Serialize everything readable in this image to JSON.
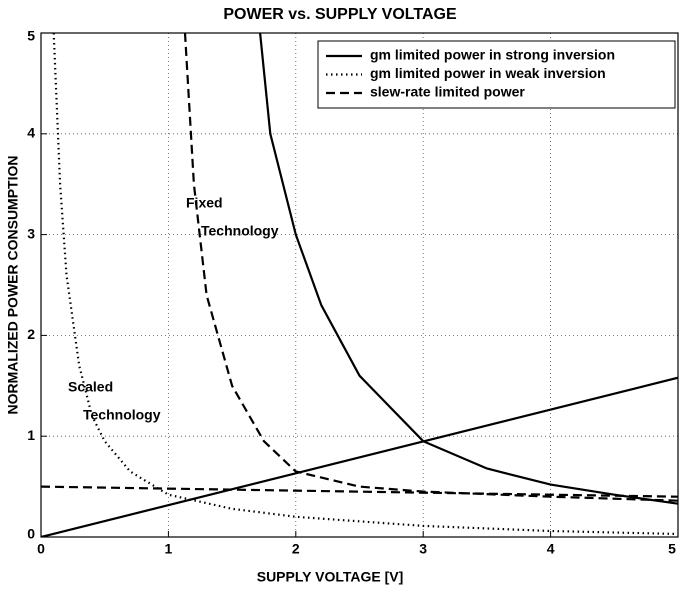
{
  "chart_data": {
    "type": "line",
    "title": "POWER vs. SUPPLY VOLTAGE",
    "xlabel": "SUPPLY VOLTAGE [V]",
    "ylabel": "NORMALIZED POWER CONSUMPTION",
    "xlim": [
      0,
      5
    ],
    "ylim": [
      0,
      5
    ],
    "xticks": [
      0,
      1,
      2,
      3,
      4,
      5
    ],
    "yticks": [
      0,
      1,
      2,
      3,
      4,
      5
    ],
    "grid": true,
    "legend": "upper right",
    "series": [
      {
        "name": "gm limited power in strong inversion",
        "color": "#000000",
        "style": "solid",
        "x": [
          1.72,
          1.8,
          2,
          2.2,
          2.5,
          3,
          3.5,
          4,
          4.5,
          5,
          null,
          0,
          5
        ],
        "values": [
          5,
          4,
          3,
          2.3,
          1.6,
          0.95,
          0.68,
          0.52,
          0.42,
          0.33,
          null,
          0,
          1.58
        ]
      },
      {
        "name": "gm limited power in weak inversion",
        "color": "#000000",
        "style": "dotted",
        "x": [
          0.1,
          0.15,
          0.2,
          0.3,
          0.4,
          0.5,
          0.7,
          1,
          1.5,
          2,
          3,
          4,
          5
        ],
        "values": [
          5,
          3.5,
          2.6,
          1.7,
          1.2,
          0.95,
          0.65,
          0.42,
          0.28,
          0.2,
          0.11,
          0.06,
          0.03
        ]
      },
      {
        "name": "slew-rate limited power",
        "color": "#000000",
        "style": "dashed",
        "x": [
          1.13,
          1.2,
          1.3,
          1.5,
          1.75,
          2,
          2.5,
          3,
          4,
          5,
          null,
          0,
          5
        ],
        "values": [
          5,
          3.5,
          2.4,
          1.5,
          0.95,
          0.65,
          0.5,
          0.45,
          0.4,
          0.36,
          null,
          0.5,
          0.4
        ]
      }
    ],
    "annotations": [
      {
        "lines": [
          "Fixed",
          "Technology"
        ]
      },
      {
        "lines": [
          "Scaled",
          "Technology"
        ]
      }
    ]
  }
}
